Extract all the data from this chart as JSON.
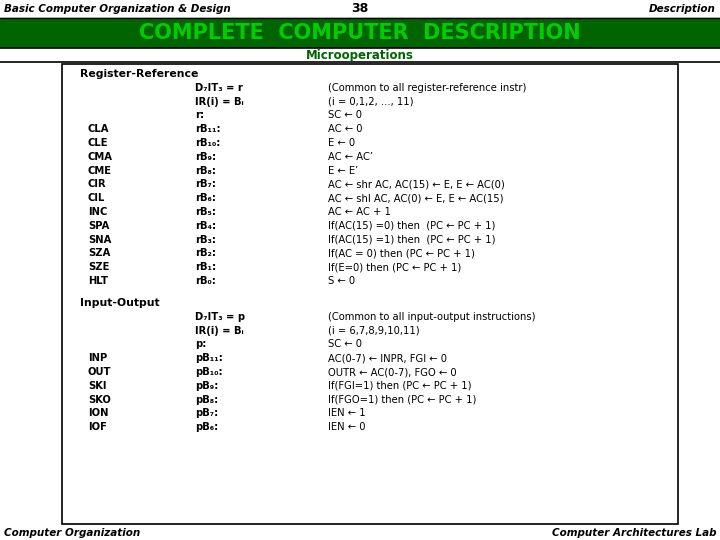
{
  "title_left": "Basic Computer Organization & Design",
  "title_center": "38",
  "title_right": "Description",
  "main_title": "COMPLETE  COMPUTER  DESCRIPTION",
  "subtitle": "Microoperations",
  "header_bg": "#006400",
  "header_text_color": "#00cc00",
  "subtitle_color": "#006400",
  "bg_color": "#ffffff",
  "box_border": "#000000",
  "footer_left": "Computer Organization",
  "footer_right": "Computer Architectures Lab",
  "register_ref_rows": [
    [
      "",
      "D₇IT₃ = r",
      "(Common to all register-reference instr)"
    ],
    [
      "",
      "IR(i) = Bᵢ",
      "(i = 0,1,2, ..., 11)"
    ],
    [
      "",
      "r:",
      "SC ← 0"
    ],
    [
      "CLA",
      "rB₁₁:",
      "AC ← 0"
    ],
    [
      "CLE",
      "rB₁₀:",
      "E ← 0"
    ],
    [
      "CMA",
      "rB₉:",
      "AC ← AC’"
    ],
    [
      "CME",
      "rB₈:",
      "E ← E’"
    ],
    [
      "CIR",
      "rB₇:",
      "AC ← shr AC, AC(15) ← E, E ← AC(0)"
    ],
    [
      "CIL",
      "rB₆:",
      "AC ← shl AC, AC(0) ← E, E ← AC(15)"
    ],
    [
      "INC",
      "rB₅:",
      "AC ← AC + 1"
    ],
    [
      "SPA",
      "rB₄:",
      "If(AC(15) =0) then  (PC ← PC + 1)"
    ],
    [
      "SNA",
      "rB₃:",
      "If(AC(15) =1) then  (PC ← PC + 1)"
    ],
    [
      "SZA",
      "rB₂:",
      "If(AC = 0) then (PC ← PC + 1)"
    ],
    [
      "SZE",
      "rB₁:",
      "If(E=0) then (PC ← PC + 1)"
    ],
    [
      "HLT",
      "rB₀:",
      "S ← 0"
    ]
  ],
  "io_rows": [
    [
      "",
      "D₇IT₃ = p",
      "(Common to all input-output instructions)"
    ],
    [
      "",
      "IR(i) = Bᵢ",
      "(i = 6,7,8,9,10,11)"
    ],
    [
      "",
      "p:",
      "SC ← 0"
    ],
    [
      "INP",
      "pB₁₁:",
      "AC(0-7) ← INPR, FGI ← 0"
    ],
    [
      "OUT",
      "pB₁₀:",
      "OUTR ← AC(0-7), FGO ← 0"
    ],
    [
      "SKI",
      "pB₉:",
      "If(FGI=1) then (PC ← PC + 1)"
    ],
    [
      "SKO",
      "pB₈:",
      "If(FGO=1) then (PC ← PC + 1)"
    ],
    [
      "ION",
      "pB₇:",
      "IEN ← 1"
    ],
    [
      "IOF",
      "pB₆:",
      "IEN ← 0"
    ]
  ]
}
